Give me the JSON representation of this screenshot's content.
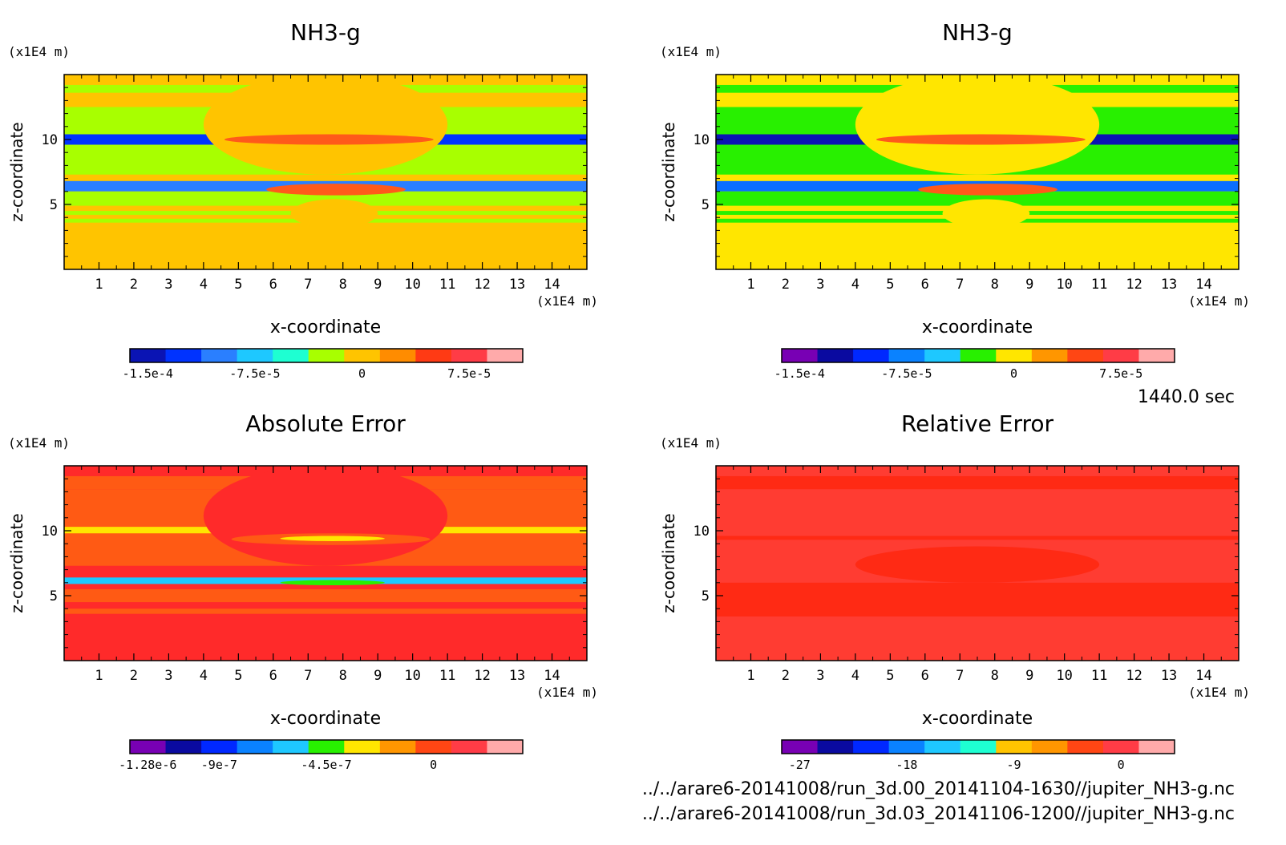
{
  "time_label": "1440.0 sec",
  "files": [
    "../../arare6-20141008/run_3d.00_20141104-1630//jupiter_NH3-g.nc",
    "../../arare6-20141008/run_3d.03_20141106-1200//jupiter_NH3-g.nc"
  ],
  "chart_data": [
    {
      "type": "heatmap",
      "title": "NH3-g",
      "xlabel": "x-coordinate",
      "ylabel": "z-coordinate",
      "x_unit": "(x1E4 m)",
      "y_unit": "(x1E4 m)",
      "xlim": [
        0,
        15
      ],
      "ylim": [
        0,
        15
      ],
      "x_ticks": [
        "1",
        "2",
        "3",
        "4",
        "5",
        "6",
        "7",
        "8",
        "9",
        "10",
        "11",
        "12",
        "13",
        "14"
      ],
      "y_ticks": [
        "5",
        "10"
      ],
      "background": "#ffc400",
      "bands": [
        {
          "z": [
            14.2,
            15.0
          ],
          "color": "#ffc400"
        },
        {
          "z": [
            13.6,
            14.2
          ],
          "color": "#a8ff00"
        },
        {
          "z": [
            12.5,
            13.2
          ],
          "color": "#ffc400"
        },
        {
          "z": [
            7.3,
            12.5
          ],
          "color": "#a8ff00"
        },
        {
          "z": [
            9.6,
            10.4
          ],
          "color": "#0033ff"
        },
        {
          "z": [
            6.0,
            6.8
          ],
          "color": "#2a7fff"
        },
        {
          "z": [
            4.9,
            6.0
          ],
          "color": "#a8ff00"
        },
        {
          "z": [
            4.2,
            4.5
          ],
          "color": "#a8ff00"
        },
        {
          "z": [
            3.6,
            3.9
          ],
          "color": "#a8ff00"
        }
      ],
      "blobs": [
        {
          "x": [
            4.0,
            11.0
          ],
          "z": [
            7.3,
            15.0
          ],
          "color": "#ffc400"
        },
        {
          "x": [
            4.6,
            10.6
          ],
          "z": [
            9.6,
            10.4
          ],
          "color": "#ff5a1a"
        },
        {
          "x": [
            5.8,
            9.8
          ],
          "z": [
            5.7,
            6.6
          ],
          "color": "#ff5a1a"
        },
        {
          "x": [
            6.5,
            9.0
          ],
          "z": [
            3.2,
            5.4
          ],
          "color": "#ffc400"
        }
      ],
      "colorbar": {
        "colors": [
          "#0a14b4",
          "#0033ff",
          "#2a7fff",
          "#1ec8ff",
          "#1effd2",
          "#a8ff00",
          "#ffc400",
          "#ff8c00",
          "#ff3a14",
          "#ff3c46",
          "#ffaaaa"
        ],
        "labels": [
          "-1.5e-4",
          "-7.5e-5",
          "0",
          "7.5e-5"
        ],
        "label_positions": [
          0,
          3,
          6,
          9
        ]
      }
    },
    {
      "type": "heatmap",
      "title": "NH3-g",
      "xlabel": "x-coordinate",
      "ylabel": "z-coordinate",
      "x_unit": "(x1E4 m)",
      "y_unit": "(x1E4 m)",
      "xlim": [
        0,
        15
      ],
      "ylim": [
        0,
        15
      ],
      "x_ticks": [
        "1",
        "2",
        "3",
        "4",
        "5",
        "6",
        "7",
        "8",
        "9",
        "10",
        "11",
        "12",
        "13",
        "14"
      ],
      "y_ticks": [
        "5",
        "10"
      ],
      "background": "#ffe600",
      "bands": [
        {
          "z": [
            14.2,
            15.0
          ],
          "color": "#ffe600"
        },
        {
          "z": [
            13.6,
            14.2
          ],
          "color": "#28f000"
        },
        {
          "z": [
            12.5,
            13.2
          ],
          "color": "#ffe600"
        },
        {
          "z": [
            7.3,
            12.5
          ],
          "color": "#28f000"
        },
        {
          "z": [
            9.6,
            10.4
          ],
          "color": "#0a14b4"
        },
        {
          "z": [
            6.0,
            6.8
          ],
          "color": "#0a6eff"
        },
        {
          "z": [
            4.9,
            6.0
          ],
          "color": "#28f000"
        },
        {
          "z": [
            4.2,
            4.5
          ],
          "color": "#28f000"
        },
        {
          "z": [
            3.6,
            3.9
          ],
          "color": "#28f000"
        }
      ],
      "blobs": [
        {
          "x": [
            4.0,
            11.0
          ],
          "z": [
            7.3,
            15.0
          ],
          "color": "#ffe600"
        },
        {
          "x": [
            4.6,
            10.6
          ],
          "z": [
            9.6,
            10.4
          ],
          "color": "#ff5a1a"
        },
        {
          "x": [
            5.8,
            9.8
          ],
          "z": [
            5.7,
            6.6
          ],
          "color": "#ff5a1a"
        },
        {
          "x": [
            6.5,
            9.0
          ],
          "z": [
            3.2,
            5.4
          ],
          "color": "#ffe600"
        }
      ],
      "colorbar": {
        "colors": [
          "#7800b4",
          "#0a0aa0",
          "#0028ff",
          "#0a82ff",
          "#1ec8ff",
          "#28f000",
          "#ffe600",
          "#ff9600",
          "#ff4614",
          "#ff3c46",
          "#ffaaaa"
        ],
        "labels": [
          "-1.5e-4",
          "-7.5e-5",
          "0",
          "7.5e-5"
        ],
        "label_positions": [
          0,
          3,
          6,
          9
        ]
      }
    },
    {
      "type": "heatmap",
      "title": "Absolute Error",
      "xlabel": "x-coordinate",
      "ylabel": "z-coordinate",
      "x_unit": "(x1E4 m)",
      "y_unit": "(x1E4 m)",
      "xlim": [
        0,
        15
      ],
      "ylim": [
        0,
        15
      ],
      "x_ticks": [
        "1",
        "2",
        "3",
        "4",
        "5",
        "6",
        "7",
        "8",
        "9",
        "10",
        "11",
        "12",
        "13",
        "14"
      ],
      "y_ticks": [
        "5",
        "10"
      ],
      "background": "#ff2a2a",
      "bands": [
        {
          "z": [
            13.2,
            14.2
          ],
          "color": "#ff5a14"
        },
        {
          "z": [
            7.3,
            13.2
          ],
          "color": "#ff5a14"
        },
        {
          "z": [
            9.8,
            10.3
          ],
          "color": "#ffe600"
        },
        {
          "z": [
            5.9,
            6.4
          ],
          "color": "#1ec8ff"
        },
        {
          "z": [
            4.5,
            5.5
          ],
          "color": "#ff5a14"
        },
        {
          "z": [
            3.6,
            4.0
          ],
          "color": "#ff5a14"
        }
      ],
      "blobs": [
        {
          "x": [
            4.0,
            11.0
          ],
          "z": [
            7.3,
            15.0
          ],
          "color": "#ff2a2a"
        },
        {
          "x": [
            4.8,
            10.5
          ],
          "z": [
            8.9,
            9.8
          ],
          "color": "#ff5a14"
        },
        {
          "x": [
            6.2,
            9.2
          ],
          "z": [
            9.2,
            9.6
          ],
          "color": "#ffe600"
        },
        {
          "x": [
            6.2,
            9.2
          ],
          "z": [
            5.8,
            6.2
          ],
          "color": "#28f000"
        }
      ],
      "colorbar": {
        "colors": [
          "#7800b4",
          "#0a0aa0",
          "#0028ff",
          "#0a82ff",
          "#1ec8ff",
          "#28f000",
          "#ffe600",
          "#ff9600",
          "#ff4614",
          "#ff3c46",
          "#ffaaaa"
        ],
        "labels": [
          "-1.28e-6",
          "-9e-7",
          "-4.5e-7",
          "0"
        ],
        "label_positions": [
          0,
          2,
          5,
          8
        ]
      }
    },
    {
      "type": "heatmap",
      "title": "Relative Error",
      "xlabel": "x-coordinate",
      "ylabel": "z-coordinate",
      "x_unit": "(x1E4 m)",
      "y_unit": "(x1E4 m)",
      "xlim": [
        0,
        15
      ],
      "ylim": [
        0,
        15
      ],
      "x_ticks": [
        "1",
        "2",
        "3",
        "4",
        "5",
        "6",
        "7",
        "8",
        "9",
        "10",
        "11",
        "12",
        "13",
        "14"
      ],
      "y_ticks": [
        "5",
        "10"
      ],
      "background": "#ff3c32",
      "bands": [
        {
          "z": [
            3.4,
            6.0
          ],
          "color": "#ff2a14"
        },
        {
          "z": [
            13.2,
            14.2
          ],
          "color": "#ff2a14"
        },
        {
          "z": [
            9.3,
            9.6
          ],
          "color": "#ff2a14"
        }
      ],
      "blobs": [
        {
          "x": [
            4.0,
            11.0
          ],
          "z": [
            6.0,
            8.8
          ],
          "color": "#ff2a14"
        }
      ],
      "colorbar": {
        "colors": [
          "#7800b4",
          "#0a0aa0",
          "#0028ff",
          "#0a82ff",
          "#1ec8ff",
          "#1effd2",
          "#ffc400",
          "#ff9600",
          "#ff4614",
          "#ff3c46",
          "#ffaaaa"
        ],
        "labels": [
          "-27",
          "-18",
          "-9",
          "0"
        ],
        "label_positions": [
          0,
          3,
          6,
          9
        ]
      }
    }
  ]
}
